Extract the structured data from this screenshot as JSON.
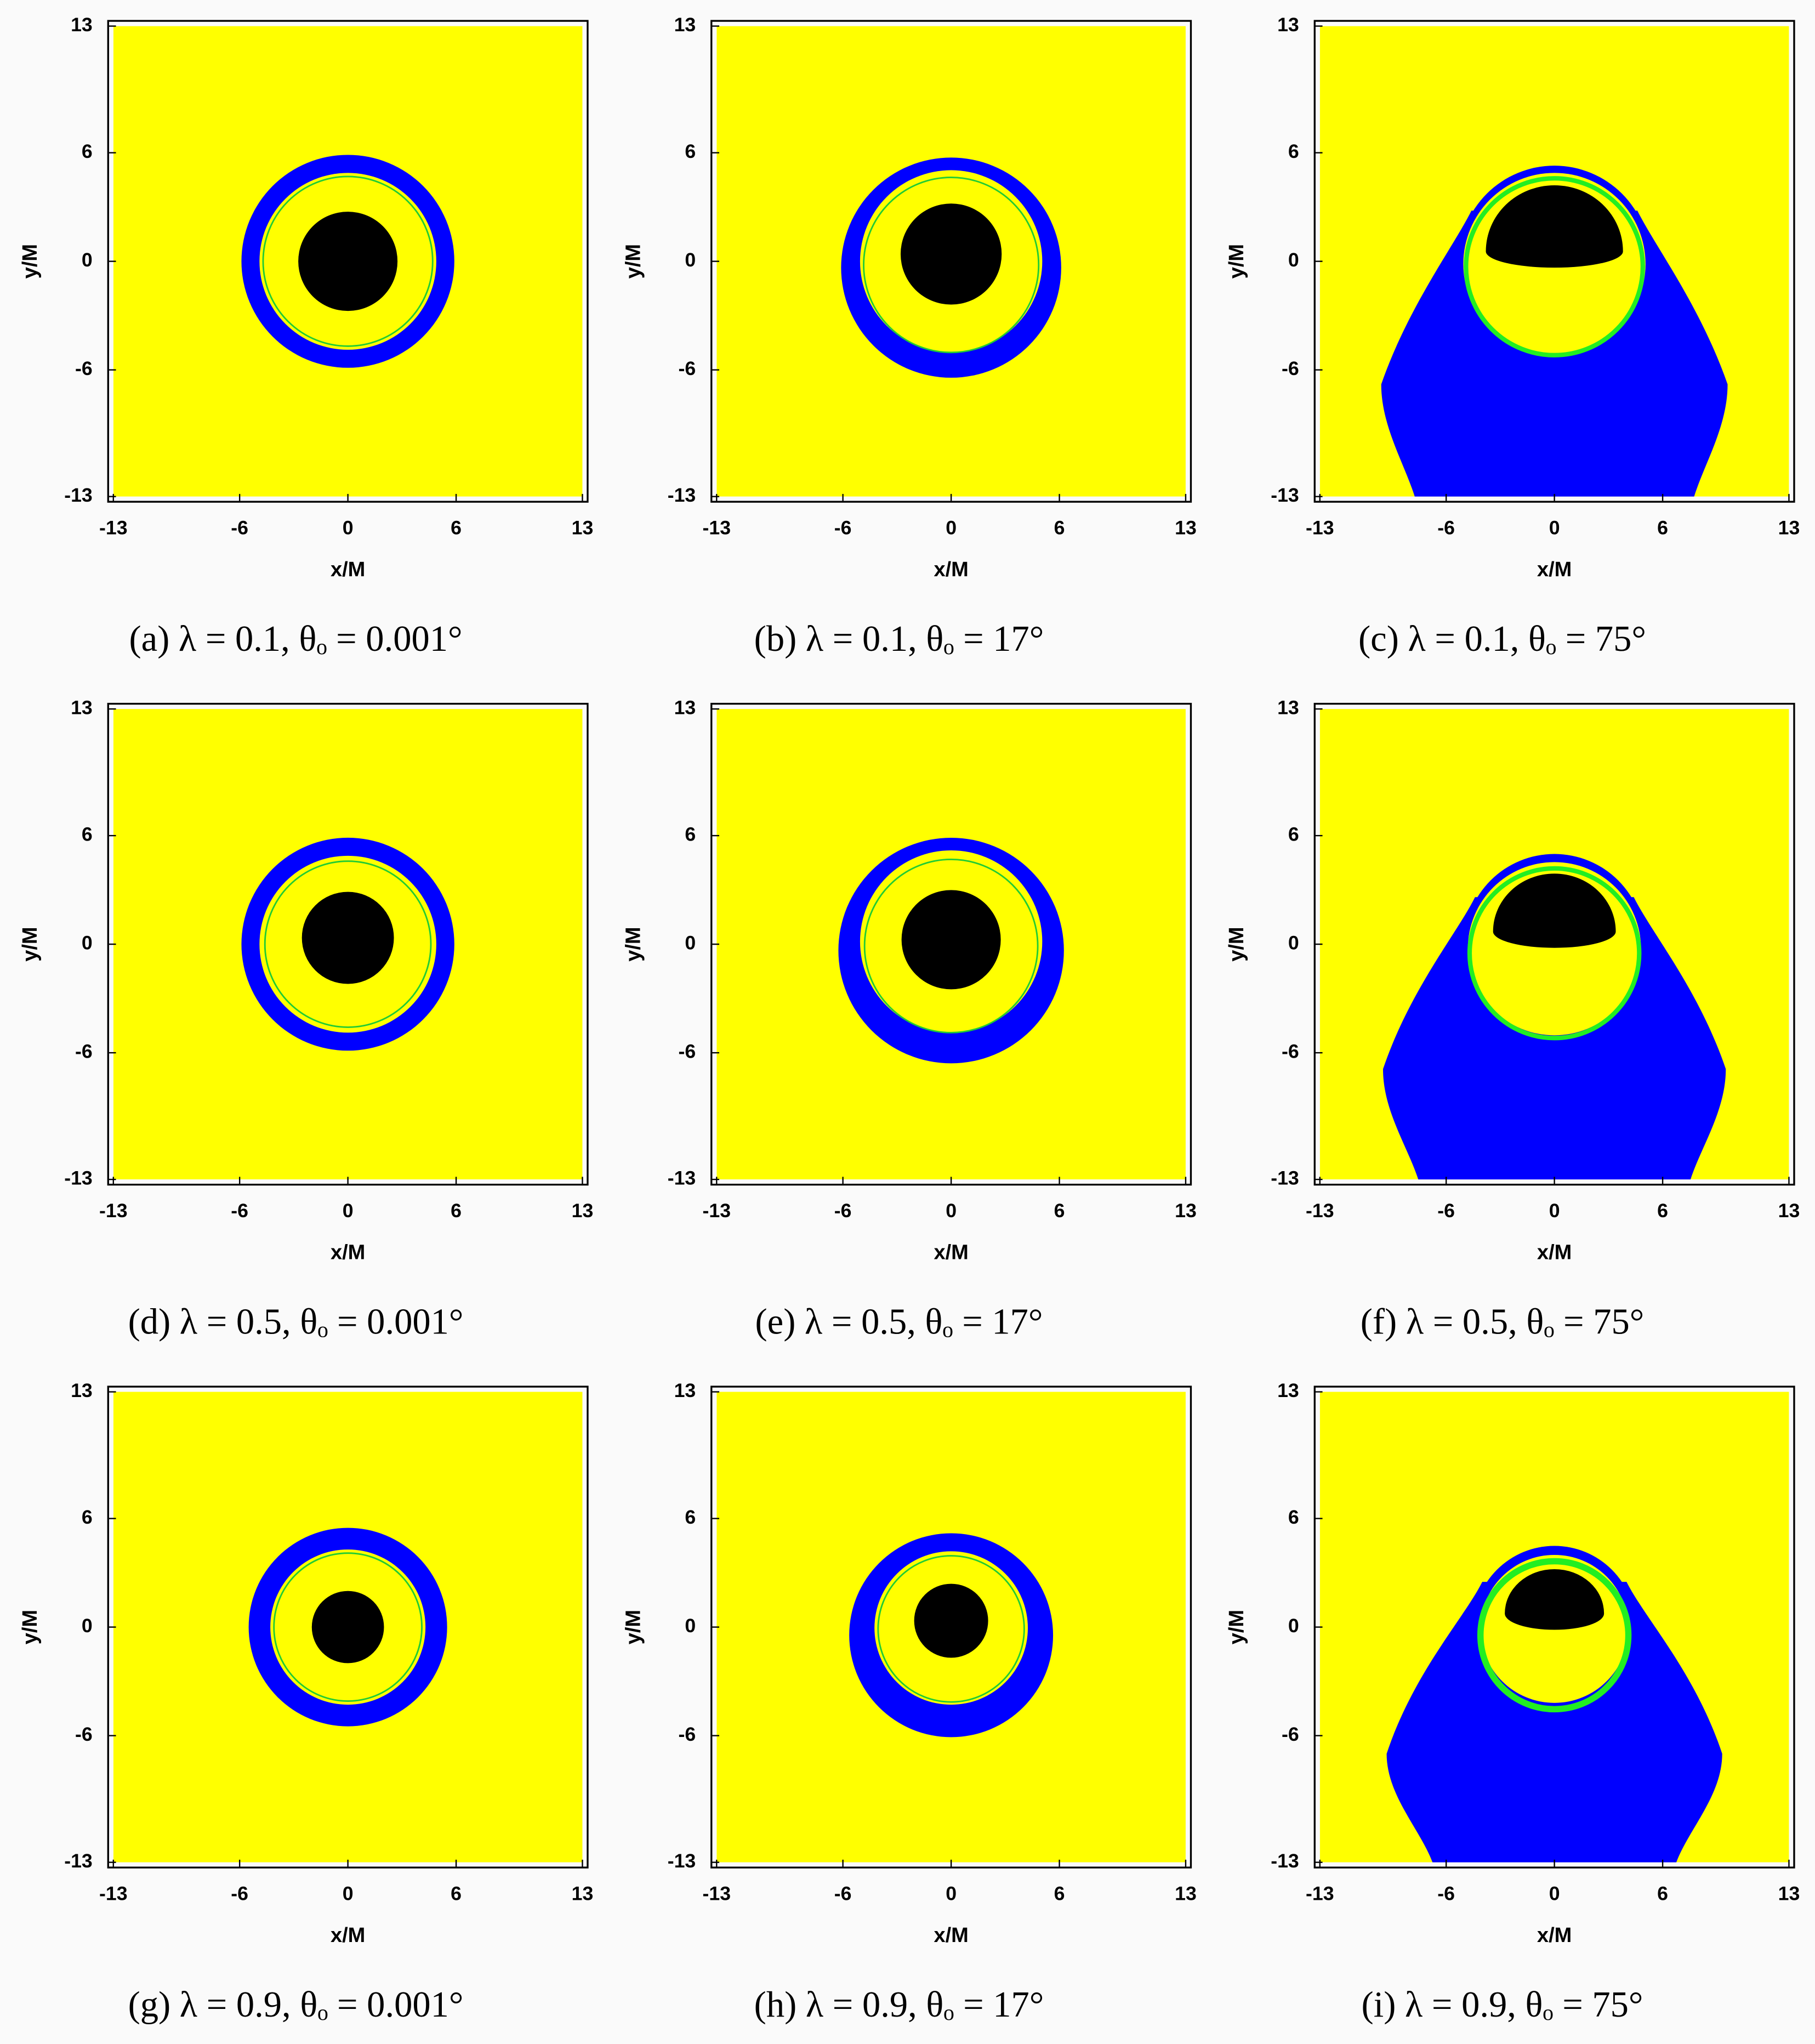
{
  "chart_data": [
    {
      "type": "shadow",
      "xlabel": "x/M",
      "ylabel": "y/M",
      "xlim": [
        -13,
        13
      ],
      "ylim": [
        -13,
        13
      ],
      "xticks": [
        -13,
        -6,
        0,
        6,
        13
      ],
      "yticks": [
        -13,
        -6,
        0,
        6,
        13
      ],
      "caption": "(a) λ = 0.1, θₒ = 0.001°"
    },
    {
      "type": "shadow",
      "xlabel": "x/M",
      "ylabel": "y/M",
      "xlim": [
        -13,
        13
      ],
      "ylim": [
        -13,
        13
      ],
      "xticks": [
        -13,
        -6,
        0,
        6,
        13
      ],
      "yticks": [
        -13,
        -6,
        0,
        6,
        13
      ],
      "caption": "(b) λ = 0.1, θₒ = 17°"
    },
    {
      "type": "shadow",
      "xlabel": "x/M",
      "ylabel": "y/M",
      "xlim": [
        -13,
        13
      ],
      "ylim": [
        -13,
        13
      ],
      "xticks": [
        -13,
        -6,
        0,
        6,
        13
      ],
      "yticks": [
        -13,
        -6,
        0,
        6,
        13
      ],
      "caption": "(c) λ = 0.1, θₒ = 75°"
    },
    {
      "type": "shadow",
      "xlabel": "x/M",
      "ylabel": "y/M",
      "xlim": [
        -13,
        13
      ],
      "ylim": [
        -13,
        13
      ],
      "xticks": [
        -13,
        -6,
        0,
        6,
        13
      ],
      "yticks": [
        -13,
        -6,
        0,
        6,
        13
      ],
      "caption": "(d) λ = 0.5, θₒ = 0.001°"
    },
    {
      "type": "shadow",
      "xlabel": "x/M",
      "ylabel": "y/M",
      "xlim": [
        -13,
        13
      ],
      "ylim": [
        -13,
        13
      ],
      "xticks": [
        -13,
        -6,
        0,
        6,
        13
      ],
      "yticks": [
        -13,
        -6,
        0,
        6,
        13
      ],
      "caption": "(e) λ = 0.5, θₒ = 17°"
    },
    {
      "type": "shadow",
      "xlabel": "x/M",
      "ylabel": "y/M",
      "xlim": [
        -13,
        13
      ],
      "ylim": [
        -13,
        13
      ],
      "xticks": [
        -13,
        -6,
        0,
        6,
        13
      ],
      "yticks": [
        -13,
        -6,
        0,
        6,
        13
      ],
      "caption": "(f) λ = 0.5, θₒ = 75°"
    },
    {
      "type": "shadow",
      "xlabel": "x/M",
      "ylabel": "y/M",
      "xlim": [
        -13,
        13
      ],
      "ylim": [
        -13,
        13
      ],
      "xticks": [
        -13,
        -6,
        0,
        6,
        13
      ],
      "yticks": [
        -13,
        -6,
        0,
        6,
        13
      ],
      "caption": "(g) λ = 0.9, θₒ = 0.001°"
    },
    {
      "type": "shadow",
      "xlabel": "x/M",
      "ylabel": "y/M",
      "xlim": [
        -13,
        13
      ],
      "ylim": [
        -13,
        13
      ],
      "xticks": [
        -13,
        -6,
        0,
        6,
        13
      ],
      "yticks": [
        -13,
        -6,
        0,
        6,
        13
      ],
      "caption": "(h) λ = 0.9, θₒ = 17°"
    },
    {
      "type": "shadow",
      "xlabel": "x/M",
      "ylabel": "y/M",
      "xlim": [
        -13,
        13
      ],
      "ylim": [
        -13,
        13
      ],
      "xticks": [
        -13,
        -6,
        0,
        6,
        13
      ],
      "yticks": [
        -13,
        -6,
        0,
        6,
        13
      ],
      "caption": "(i) λ = 0.9, θₒ = 75°"
    }
  ]
}
